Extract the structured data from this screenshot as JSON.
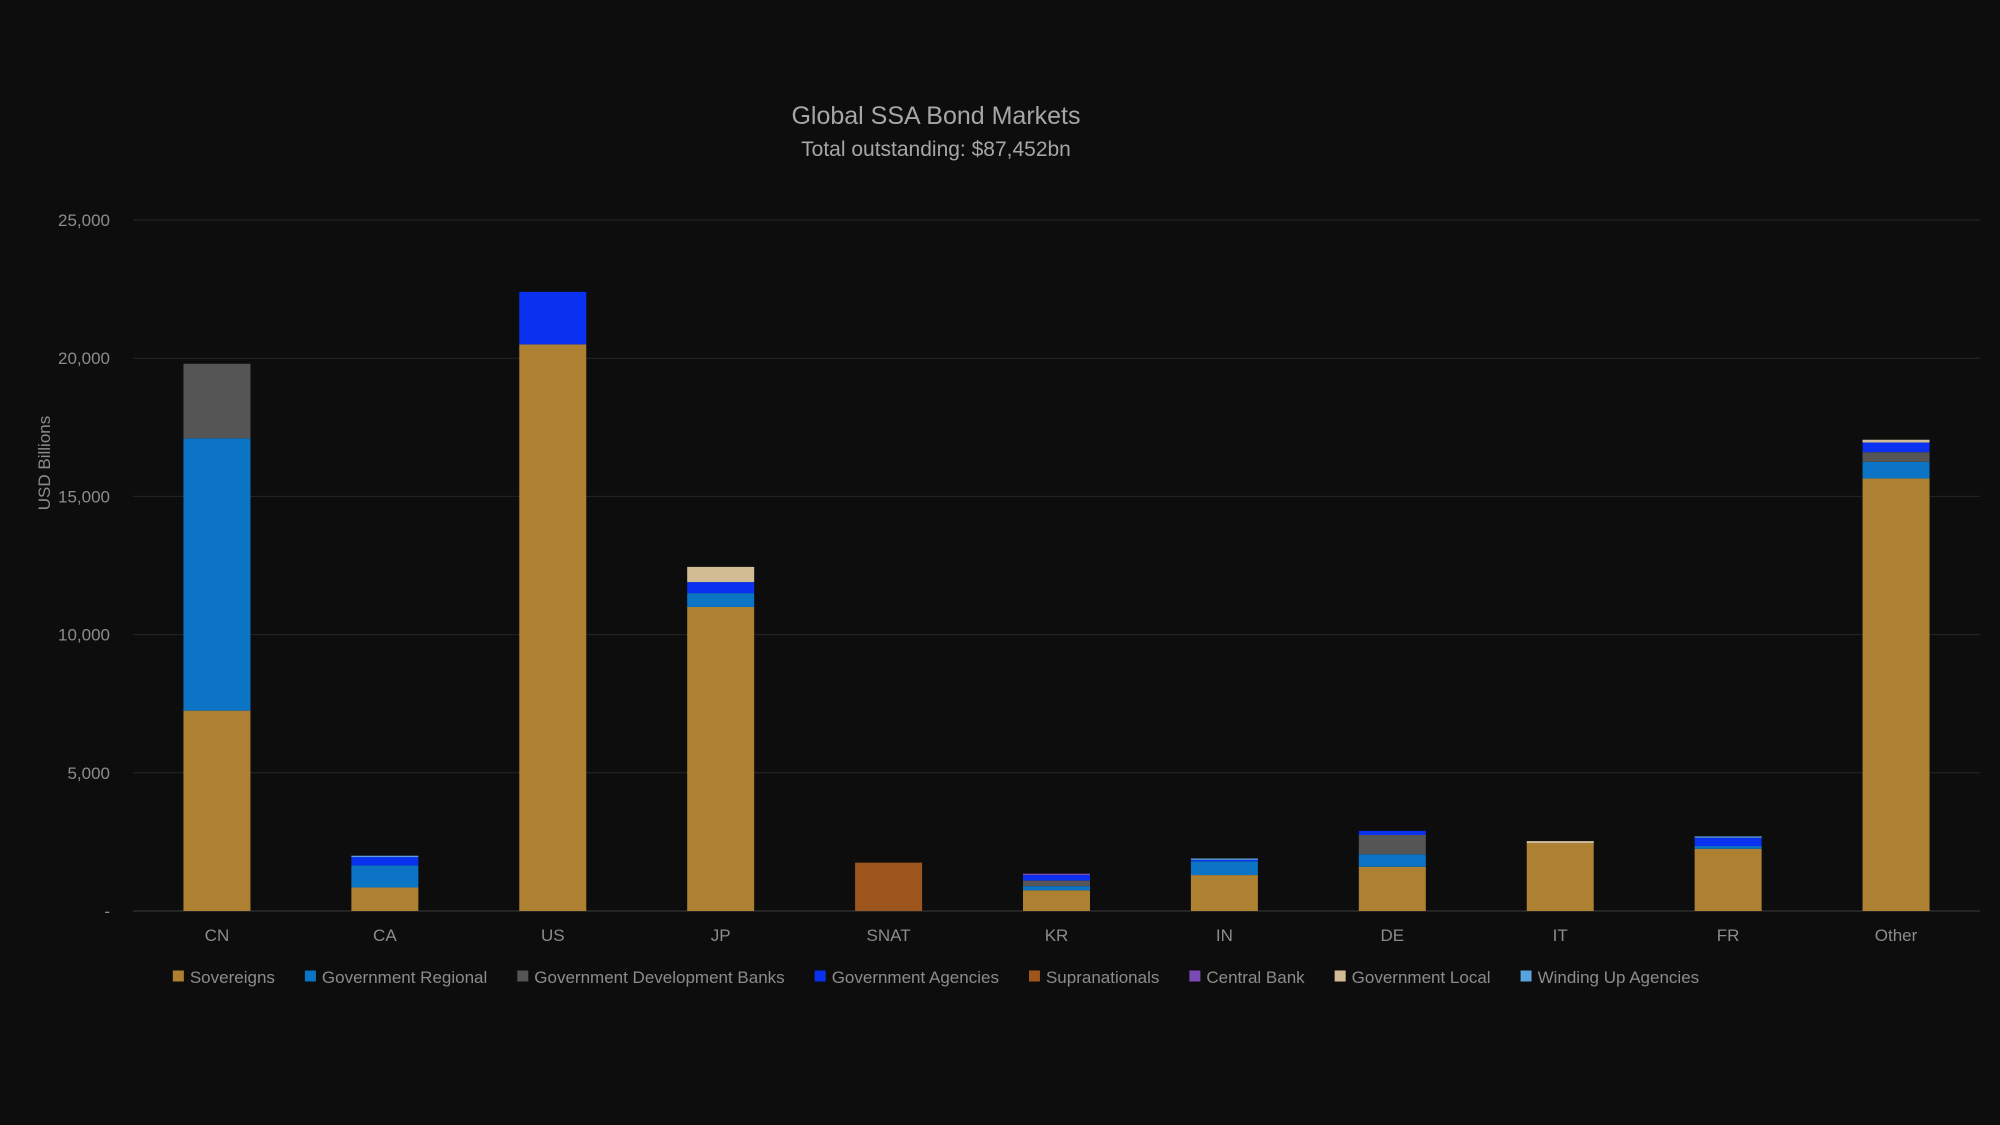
{
  "chart_data": {
    "type": "bar",
    "stacked": true,
    "title": "Global SSA Bond Markets",
    "subtitle": "Total outstanding: $87,452bn",
    "ylabel": "USD Billions",
    "xlabel": "",
    "ylim": [
      0,
      25000
    ],
    "yticks": [
      {
        "value": 0,
        "label": "-"
      },
      {
        "value": 5000,
        "label": "5,000"
      },
      {
        "value": 10000,
        "label": "10,000"
      },
      {
        "value": 15000,
        "label": "15,000"
      },
      {
        "value": 20000,
        "label": "20,000"
      },
      {
        "value": 25000,
        "label": "25,000"
      }
    ],
    "grid": true,
    "legend_position": "bottom",
    "categories": [
      "CN",
      "CA",
      "US",
      "JP",
      "SNAT",
      "KR",
      "IN",
      "DE",
      "IT",
      "FR",
      "Other"
    ],
    "series": [
      {
        "name": "Sovereigns",
        "color": "#ad8131",
        "values": [
          7250,
          850,
          20500,
          11000,
          0,
          750,
          1300,
          1600,
          2450,
          2250,
          15650
        ]
      },
      {
        "name": "Government Regional",
        "color": "#0b74c4",
        "values": [
          9850,
          800,
          0,
          500,
          0,
          150,
          500,
          450,
          0,
          100,
          600
        ]
      },
      {
        "name": "Government Development Banks",
        "color": "#555555",
        "values": [
          2700,
          0,
          0,
          0,
          0,
          200,
          0,
          700,
          0,
          0,
          350
        ]
      },
      {
        "name": "Government Agencies",
        "color": "#0a30f0",
        "values": [
          0,
          300,
          1900,
          400,
          0,
          200,
          50,
          150,
          0,
          300,
          350
        ]
      },
      {
        "name": "Supranationals",
        "color": "#9c561e",
        "values": [
          0,
          0,
          0,
          0,
          1750,
          0,
          0,
          0,
          0,
          0,
          0
        ]
      },
      {
        "name": "Central Bank",
        "color": "#7a4bb5",
        "values": [
          0,
          0,
          0,
          0,
          0,
          50,
          0,
          0,
          0,
          0,
          0
        ]
      },
      {
        "name": "Government Local",
        "color": "#d1bc94",
        "values": [
          0,
          0,
          0,
          550,
          0,
          0,
          0,
          0,
          80,
          0,
          100
        ]
      },
      {
        "name": "Winding Up Agencies",
        "color": "#5ba3dc",
        "values": [
          0,
          50,
          0,
          0,
          0,
          0,
          50,
          0,
          0,
          50,
          0
        ]
      }
    ]
  }
}
